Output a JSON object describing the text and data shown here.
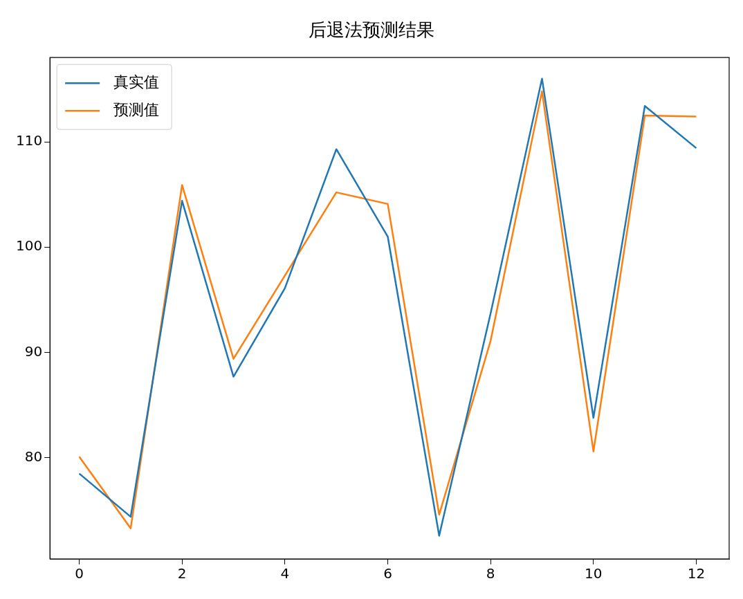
{
  "chart_data": {
    "type": "line",
    "title": "后退法预测结果",
    "x": [
      0,
      1,
      2,
      3,
      4,
      5,
      6,
      7,
      8,
      9,
      10,
      11,
      12
    ],
    "series": [
      {
        "name": "真实值",
        "color": "#1f77b4",
        "values": [
          78.5,
          74.4,
          104.4,
          87.7,
          96.1,
          109.3,
          101.0,
          72.6,
          93.7,
          116.0,
          83.8,
          113.4,
          109.4
        ]
      },
      {
        "name": "预测值",
        "color": "#ff7f0e",
        "values": [
          80.1,
          73.3,
          105.9,
          89.4,
          97.3,
          105.2,
          104.1,
          74.6,
          91.1,
          114.8,
          80.6,
          112.5,
          112.4
        ]
      }
    ],
    "xlim": [
      -0.57,
      12.64
    ],
    "xticks": [
      0,
      2,
      4,
      6,
      8,
      10,
      12
    ],
    "ylim": [
      70.4,
      118
    ],
    "yticks": [
      80,
      90,
      100,
      110
    ],
    "grid": false,
    "legend": "top left",
    "marker": "none",
    "line_style": "solid"
  }
}
